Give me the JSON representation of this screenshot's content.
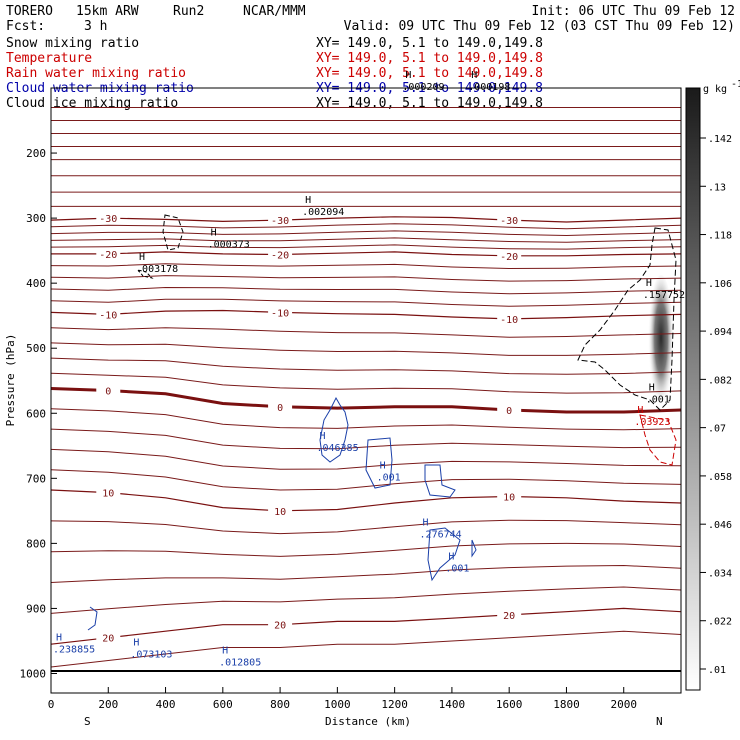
{
  "header": {
    "model": "TORERO",
    "resolution": "15km ARW",
    "run": "Run2",
    "center": "NCAR/MMM",
    "init": "Init: 06 UTC Thu 09 Feb 12",
    "fcst_label": "Fcst:",
    "fcst_hours": "3 h",
    "valid": "Valid: 09 UTC Thu 09 Feb 12 (03 CST Thu 09 Feb 12)"
  },
  "fields": [
    {
      "name": "Snow mixing ratio",
      "color": "#000000",
      "xy": ""
    },
    {
      "name": "Temperature",
      "color": "#cc0000",
      "xy": "XY= 149.0,  5.1 to 149.0,149.8"
    },
    {
      "name": "Rain water mixing ratio",
      "color": "#cc0000",
      "xy": "XY= 149.0,  5.1 to 149.0,149.8"
    },
    {
      "name": "Cloud water mixing ratio",
      "color": "#0000aa",
      "xy": "XY= 149.0,  5.1 to 149.0,149.8"
    },
    {
      "name": "Cloud ice mixing ratio",
      "color": "#000000",
      "xy": "XY= 149.0,  5.1 to 149.0,149.8"
    }
  ],
  "snow_xy": "XY= 149.0,  5.1 to 149.0,149.8",
  "chart_data": {
    "type": "contour-cross-section",
    "xlabel": "Distance (km)",
    "ylabel": "Pressure (hPa)",
    "xlim": [
      0,
      2200
    ],
    "ylim_hpa": [
      100,
      1030
    ],
    "x_ticks": [
      0,
      200,
      400,
      600,
      800,
      1000,
      1200,
      1400,
      1600,
      1800,
      2000
    ],
    "y_ticks": [
      200,
      300,
      400,
      500,
      600,
      700,
      800,
      900,
      1000
    ],
    "x_end_labels": {
      "left": "S",
      "right": "N"
    },
    "colorbar": {
      "units": "g kg",
      "ticks": [
        ".142",
        ".13",
        ".118",
        ".106",
        ".094",
        ".082",
        ".07",
        ".058",
        ".046",
        ".034",
        ".022",
        ".01"
      ]
    },
    "temperature_contours": [
      {
        "value": -30,
        "label": "-30",
        "p": [
          303,
          300,
          302,
          305,
          303,
          300,
          298,
          299,
          303,
          306,
          303,
          300
        ]
      },
      {
        "value": -20,
        "label": "-20",
        "p": [
          355,
          355,
          352,
          355,
          356,
          354,
          352,
          356,
          358,
          358,
          356,
          355
        ]
      },
      {
        "value": -10,
        "label": "-10",
        "p": [
          445,
          448,
          443,
          442,
          445,
          447,
          448,
          452,
          455,
          453,
          450,
          448
        ]
      },
      {
        "value": 0,
        "label": "0",
        "p": [
          562,
          565,
          570,
          585,
          590,
          592,
          590,
          590,
          595,
          598,
          598,
          595
        ]
      },
      {
        "value": 10,
        "label": "10",
        "p": [
          718,
          722,
          730,
          745,
          750,
          748,
          738,
          730,
          728,
          730,
          735,
          738
        ]
      },
      {
        "value": 20,
        "label": "20",
        "p": [
          955,
          945,
          935,
          925,
          925,
          920,
          920,
          915,
          910,
          905,
          900,
          905
        ]
      }
    ],
    "maxima_labels": [
      {
        "field": "snow",
        "text": ".002094",
        "x": 870,
        "p": 292
      },
      {
        "field": "snow",
        "text": ".000373",
        "x": 540,
        "p": 342
      },
      {
        "field": "snow",
        "text": ".003178",
        "x": 290,
        "p": 380
      },
      {
        "field": "snow",
        "text": ".000209",
        "x": 1220,
        "p": 100
      },
      {
        "field": "snow",
        "text": ".000198",
        "x": 1450,
        "p": 100
      },
      {
        "field": "snow",
        "text": ".001",
        "x": 2070,
        "p": 580
      },
      {
        "field": "cloud_ice",
        "text": ".157752",
        "x": 2060,
        "p": 420
      },
      {
        "field": "rain",
        "text": ".03923",
        "x": 2030,
        "p": 615
      },
      {
        "field": "cloud_water",
        "text": ".046385",
        "x": 920,
        "p": 655
      },
      {
        "field": "cloud_water",
        "text": ".001",
        "x": 1130,
        "p": 700
      },
      {
        "field": "cloud_water",
        "text": ".276744",
        "x": 1280,
        "p": 788
      },
      {
        "field": "cloud_water",
        "text": ".001",
        "x": 1370,
        "p": 840
      },
      {
        "field": "cloud_water",
        "text": ".238855",
        "x": 0,
        "p": 965
      },
      {
        "field": "cloud_water",
        "text": ".073103",
        "x": 270,
        "p": 972
      },
      {
        "field": "cloud_water",
        "text": ".012805",
        "x": 580,
        "p": 985
      }
    ]
  }
}
